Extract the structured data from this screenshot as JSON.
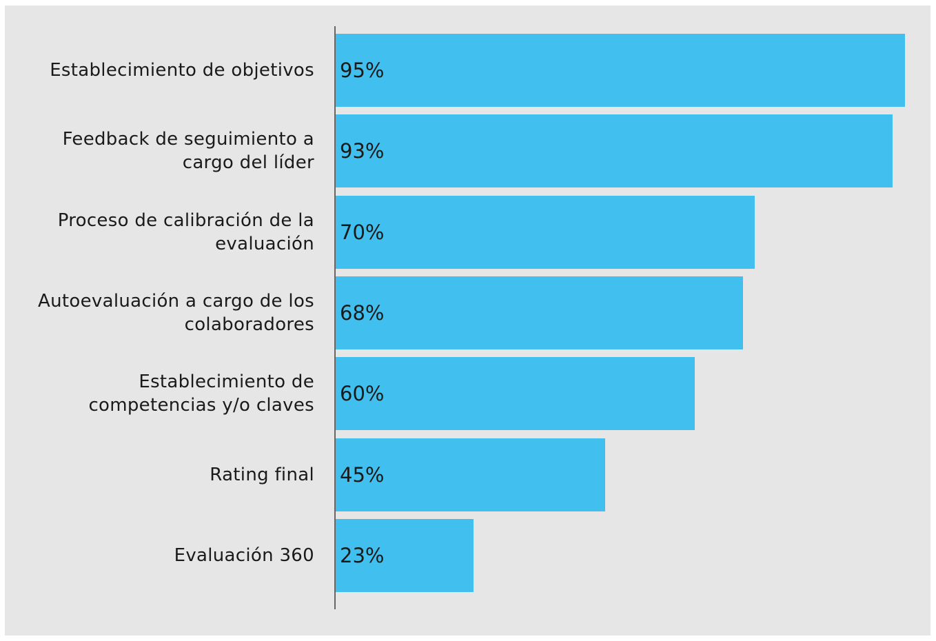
{
  "chart_data": {
    "type": "bar",
    "orientation": "horizontal",
    "categories": [
      "Establecimiento de objetivos",
      "Feedback de seguimiento a cargo del líder",
      "Proceso de calibración de la evaluación",
      "Autoevaluación a cargo de los colaboradores",
      "Establecimiento de competencias y/o claves",
      "Rating final",
      "Evaluación 360"
    ],
    "values": [
      95,
      93,
      70,
      68,
      60,
      45,
      23
    ],
    "value_labels": [
      "95%",
      "93%",
      "70%",
      "68%",
      "60%",
      "45%",
      "23%"
    ],
    "color": "#41bfef",
    "xlim": [
      0,
      100
    ]
  }
}
